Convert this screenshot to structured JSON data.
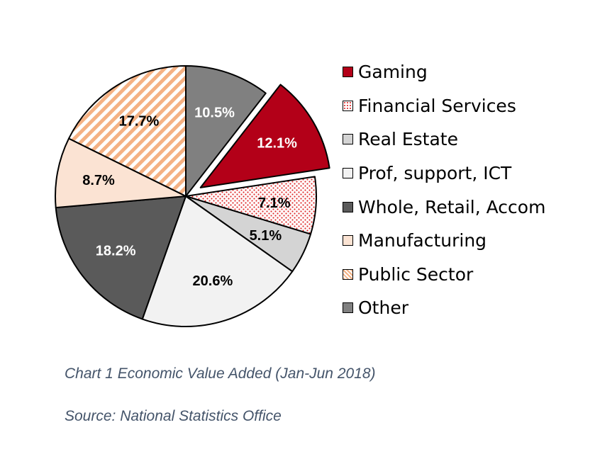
{
  "chart_data": {
    "type": "pie",
    "title": "Chart 1 Economic Value Added (Jan-Jun 2018)",
    "source": "Source: National Statistics Office",
    "start_angle_deg": 0,
    "direction": "clockwise",
    "exploded": [
      "Gaming"
    ],
    "slices": [
      {
        "name": "Other",
        "value": 10.5,
        "label": "10.5%",
        "color": "#808080",
        "pattern": "solid",
        "label_color": "#ffffff"
      },
      {
        "name": "Gaming",
        "value": 12.1,
        "label": "12.1%",
        "color": "#b30018",
        "pattern": "solid",
        "label_color": "#ffffff"
      },
      {
        "name": "Financial Services",
        "value": 7.1,
        "label": "7.1%",
        "color": "#e03030",
        "pattern": "dots",
        "label_color": "#000000"
      },
      {
        "name": "Real Estate",
        "value": 5.1,
        "label": "5.1%",
        "color": "#d4d4d4",
        "pattern": "solid",
        "label_color": "#000000"
      },
      {
        "name": "Prof, support, ICT",
        "value": 20.6,
        "label": "20.6%",
        "color": "#f2f2f2",
        "pattern": "solid",
        "label_color": "#000000"
      },
      {
        "name": "Whole, Retail, Accom",
        "value": 18.2,
        "label": "18.2%",
        "color": "#5a5a5a",
        "pattern": "solid",
        "label_color": "#ffffff"
      },
      {
        "name": "Manufacturing",
        "value": 8.7,
        "label": "8.7%",
        "color": "#fbe3d3",
        "pattern": "solid",
        "label_color": "#000000"
      },
      {
        "name": "Public Sector",
        "value": 17.7,
        "label": "17.7%",
        "color": "#f4b183",
        "pattern": "stripes",
        "label_color": "#000000"
      }
    ],
    "legend": [
      {
        "name": "Gaming",
        "color": "#b30018",
        "pattern": "solid"
      },
      {
        "name": "Financial Services",
        "color": "#e03030",
        "pattern": "dots"
      },
      {
        "name": "Real Estate",
        "color": "#d4d4d4",
        "pattern": "solid"
      },
      {
        "name": "Prof, support, ICT",
        "color": "#f2f2f2",
        "pattern": "solid"
      },
      {
        "name": "Whole, Retail, Accom",
        "color": "#5a5a5a",
        "pattern": "solid"
      },
      {
        "name": "Manufacturing",
        "color": "#fbe3d3",
        "pattern": "solid"
      },
      {
        "name": "Public Sector",
        "color": "#f4b183",
        "pattern": "stripes"
      },
      {
        "name": "Other",
        "color": "#808080",
        "pattern": "solid"
      }
    ],
    "legend_position": "right"
  }
}
